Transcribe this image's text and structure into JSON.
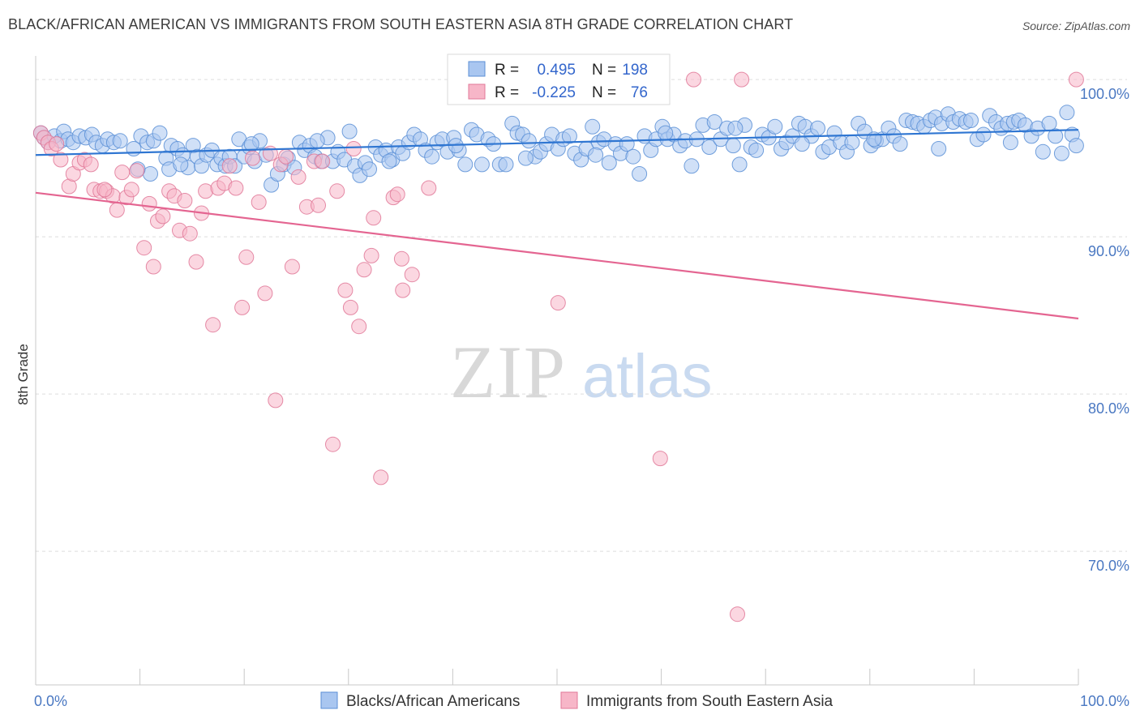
{
  "chart_data": {
    "type": "scatter",
    "title": "BLACK/AFRICAN AMERICAN VS IMMIGRANTS FROM SOUTH EASTERN ASIA 8TH GRADE CORRELATION CHART",
    "source": "Source: ZipAtlas.com",
    "watermark": "ZIPatlas",
    "ylabel": "8th Grade",
    "xlim": [
      0,
      100
    ],
    "ylim": [
      61.5,
      101.5
    ],
    "x_tick_labels": {
      "left": "0.0%",
      "right": "100.0%"
    },
    "y_ticks": [
      {
        "value": 100,
        "label": "100.0%"
      },
      {
        "value": 90,
        "label": "90.0%"
      },
      {
        "value": 80,
        "label": "80.0%"
      },
      {
        "value": 70,
        "label": "70.0%"
      }
    ],
    "grid": true,
    "legend_position": "bottom-center",
    "stats_box": {
      "position": "top-center",
      "rows": [
        {
          "r_label": "R =",
          "r_value": "0.495",
          "n_label": "N =",
          "n_value": "198"
        },
        {
          "r_label": "R =",
          "r_value": "-0.225",
          "n_label": "N =",
          "n_value": "76"
        }
      ]
    },
    "series": [
      {
        "name": "Blacks/African Americans",
        "fill": "#a9c6f0",
        "stroke": "#5b8fd6",
        "line_color": "#2f76d2",
        "trend": {
          "x": [
            0,
            100
          ],
          "y": [
            95.2,
            96.8
          ]
        },
        "points": [
          [
            0.5,
            96.6
          ],
          [
            0.8,
            96.3
          ],
          [
            1.2,
            96.0
          ],
          [
            1.8,
            96.4
          ],
          [
            2.4,
            96.1
          ],
          [
            2.7,
            96.7
          ],
          [
            3.1,
            96.2
          ],
          [
            3.6,
            96.0
          ],
          [
            4.2,
            96.4
          ],
          [
            4.8,
            96.3
          ],
          [
            5.4,
            96.5
          ],
          [
            5.8,
            96.0
          ],
          [
            6.4,
            95.8
          ],
          [
            6.9,
            96.2
          ],
          [
            7.5,
            96.0
          ],
          [
            8.1,
            96.1
          ],
          [
            9.4,
            95.6
          ],
          [
            10.1,
            96.4
          ],
          [
            10.7,
            96.0
          ],
          [
            11.3,
            96.1
          ],
          [
            11.9,
            96.6
          ],
          [
            12.5,
            95.0
          ],
          [
            12.8,
            94.3
          ],
          [
            13.0,
            95.8
          ],
          [
            13.6,
            95.6
          ],
          [
            14.1,
            95.2
          ],
          [
            14.6,
            94.4
          ],
          [
            15.1,
            95.8
          ],
          [
            15.5,
            95.1
          ],
          [
            15.9,
            94.5
          ],
          [
            16.4,
            95.2
          ],
          [
            16.9,
            95.5
          ],
          [
            17.4,
            94.6
          ],
          [
            17.8,
            95.0
          ],
          [
            18.2,
            94.5
          ],
          [
            18.6,
            95.1
          ],
          [
            19.1,
            94.5
          ],
          [
            19.5,
            96.2
          ],
          [
            20.0,
            95.1
          ],
          [
            20.5,
            95.7
          ],
          [
            21.0,
            94.8
          ],
          [
            21.5,
            96.1
          ],
          [
            22.1,
            95.2
          ],
          [
            22.6,
            93.3
          ],
          [
            23.2,
            94.0
          ],
          [
            23.8,
            94.6
          ],
          [
            24.2,
            95.0
          ],
          [
            24.8,
            94.4
          ],
          [
            25.3,
            96.0
          ],
          [
            25.8,
            95.5
          ],
          [
            26.3,
            95.8
          ],
          [
            26.8,
            95.1
          ],
          [
            27.4,
            94.8
          ],
          [
            28.0,
            96.3
          ],
          [
            28.5,
            94.8
          ],
          [
            29.0,
            95.4
          ],
          [
            29.6,
            94.9
          ],
          [
            30.1,
            96.7
          ],
          [
            30.6,
            94.5
          ],
          [
            31.1,
            93.9
          ],
          [
            31.6,
            94.7
          ],
          [
            32.0,
            94.3
          ],
          [
            32.6,
            95.7
          ],
          [
            33.1,
            95.2
          ],
          [
            33.6,
            95.5
          ],
          [
            34.2,
            94.9
          ],
          [
            34.8,
            95.7
          ],
          [
            35.2,
            95.3
          ],
          [
            35.8,
            96.0
          ],
          [
            36.3,
            96.5
          ],
          [
            36.9,
            96.2
          ],
          [
            37.4,
            95.5
          ],
          [
            38.0,
            95.1
          ],
          [
            38.5,
            96.0
          ],
          [
            39.0,
            96.2
          ],
          [
            39.5,
            95.4
          ],
          [
            40.1,
            96.3
          ],
          [
            40.6,
            95.5
          ],
          [
            41.2,
            94.6
          ],
          [
            41.8,
            96.8
          ],
          [
            42.3,
            96.5
          ],
          [
            42.8,
            94.6
          ],
          [
            43.4,
            96.2
          ],
          [
            43.9,
            95.9
          ],
          [
            44.5,
            94.6
          ],
          [
            45.1,
            94.6
          ],
          [
            45.7,
            97.2
          ],
          [
            46.2,
            96.6
          ],
          [
            46.7,
            96.5
          ],
          [
            47.3,
            96.1
          ],
          [
            47.9,
            95.1
          ],
          [
            48.4,
            95.4
          ],
          [
            49.0,
            95.9
          ],
          [
            49.5,
            96.5
          ],
          [
            50.1,
            95.6
          ],
          [
            50.6,
            96.2
          ],
          [
            51.2,
            96.4
          ],
          [
            51.7,
            95.3
          ],
          [
            52.3,
            94.9
          ],
          [
            52.8,
            95.6
          ],
          [
            53.4,
            97.0
          ],
          [
            54.0,
            96.0
          ],
          [
            54.5,
            96.2
          ],
          [
            55.0,
            94.7
          ],
          [
            55.6,
            95.9
          ],
          [
            56.1,
            95.3
          ],
          [
            56.7,
            95.9
          ],
          [
            57.3,
            95.1
          ],
          [
            57.9,
            94.0
          ],
          [
            58.4,
            96.4
          ],
          [
            59.0,
            95.5
          ],
          [
            59.5,
            96.2
          ],
          [
            60.1,
            97.0
          ],
          [
            60.6,
            96.2
          ],
          [
            61.2,
            96.5
          ],
          [
            61.8,
            95.8
          ],
          [
            62.3,
            96.1
          ],
          [
            62.9,
            94.5
          ],
          [
            63.4,
            96.2
          ],
          [
            64.0,
            97.1
          ],
          [
            64.6,
            95.7
          ],
          [
            65.1,
            97.3
          ],
          [
            65.7,
            96.2
          ],
          [
            66.3,
            96.9
          ],
          [
            66.9,
            95.8
          ],
          [
            67.5,
            94.6
          ],
          [
            68.0,
            97.1
          ],
          [
            68.6,
            95.7
          ],
          [
            69.1,
            95.5
          ],
          [
            69.7,
            96.5
          ],
          [
            70.3,
            96.3
          ],
          [
            70.9,
            97.0
          ],
          [
            71.5,
            95.6
          ],
          [
            72.0,
            96.0
          ],
          [
            72.6,
            96.4
          ],
          [
            73.2,
            97.2
          ],
          [
            73.8,
            97.0
          ],
          [
            74.4,
            96.4
          ],
          [
            75.0,
            96.9
          ],
          [
            75.5,
            95.4
          ],
          [
            76.1,
            95.7
          ],
          [
            76.6,
            96.6
          ],
          [
            77.2,
            96.0
          ],
          [
            77.8,
            95.4
          ],
          [
            78.3,
            96.0
          ],
          [
            78.9,
            97.2
          ],
          [
            79.5,
            96.7
          ],
          [
            80.1,
            95.8
          ],
          [
            80.6,
            96.1
          ],
          [
            81.2,
            96.2
          ],
          [
            81.8,
            96.9
          ],
          [
            82.3,
            96.4
          ],
          [
            82.9,
            95.9
          ],
          [
            83.5,
            97.4
          ],
          [
            84.1,
            97.3
          ],
          [
            84.6,
            97.2
          ],
          [
            85.2,
            97.0
          ],
          [
            85.8,
            97.4
          ],
          [
            86.3,
            97.6
          ],
          [
            86.9,
            97.2
          ],
          [
            87.5,
            97.8
          ],
          [
            88.0,
            97.3
          ],
          [
            88.6,
            97.5
          ],
          [
            89.2,
            97.3
          ],
          [
            89.7,
            97.4
          ],
          [
            90.3,
            96.2
          ],
          [
            90.9,
            96.5
          ],
          [
            91.5,
            97.7
          ],
          [
            92.1,
            97.3
          ],
          [
            92.6,
            96.9
          ],
          [
            93.2,
            97.2
          ],
          [
            93.8,
            97.3
          ],
          [
            94.3,
            97.4
          ],
          [
            94.9,
            97.1
          ],
          [
            95.5,
            96.4
          ],
          [
            96.1,
            96.9
          ],
          [
            96.6,
            95.4
          ],
          [
            97.2,
            97.2
          ],
          [
            97.8,
            96.4
          ],
          [
            98.4,
            95.3
          ],
          [
            98.9,
            97.9
          ],
          [
            99.4,
            96.5
          ],
          [
            99.8,
            95.8
          ],
          [
            11.0,
            94.0
          ],
          [
            13.9,
            94.6
          ],
          [
            20.7,
            95.9
          ],
          [
            27.0,
            96.1
          ],
          [
            33.9,
            94.8
          ],
          [
            40.3,
            95.8
          ],
          [
            47.0,
            95.0
          ],
          [
            53.7,
            95.2
          ],
          [
            60.4,
            96.6
          ],
          [
            67.1,
            96.9
          ],
          [
            73.5,
            95.9
          ],
          [
            80.4,
            96.2
          ],
          [
            86.6,
            95.6
          ],
          [
            93.5,
            96.0
          ],
          [
            9.8,
            94.3
          ]
        ]
      },
      {
        "name": "Immigrants from South Eastern Asia",
        "fill": "#f7b6c8",
        "stroke": "#e07898",
        "line_color": "#e46591",
        "trend": {
          "x": [
            0,
            100
          ],
          "y": [
            92.8,
            84.8
          ]
        },
        "points": [
          [
            0.5,
            96.6
          ],
          [
            0.8,
            96.3
          ],
          [
            1.2,
            96.0
          ],
          [
            1.5,
            95.6
          ],
          [
            2.0,
            95.9
          ],
          [
            2.4,
            94.9
          ],
          [
            3.2,
            93.2
          ],
          [
            3.6,
            94.0
          ],
          [
            4.2,
            94.7
          ],
          [
            4.7,
            94.9
          ],
          [
            5.3,
            94.6
          ],
          [
            5.6,
            93.0
          ],
          [
            6.2,
            92.9
          ],
          [
            6.8,
            92.9
          ],
          [
            7.4,
            92.6
          ],
          [
            7.8,
            91.7
          ],
          [
            8.3,
            94.1
          ],
          [
            8.7,
            92.5
          ],
          [
            9.2,
            93.0
          ],
          [
            9.7,
            94.2
          ],
          [
            10.4,
            89.3
          ],
          [
            10.9,
            92.1
          ],
          [
            11.3,
            88.1
          ],
          [
            11.7,
            91.0
          ],
          [
            12.2,
            91.3
          ],
          [
            12.8,
            92.9
          ],
          [
            13.3,
            92.6
          ],
          [
            13.8,
            90.4
          ],
          [
            14.3,
            92.3
          ],
          [
            14.8,
            90.2
          ],
          [
            15.4,
            88.4
          ],
          [
            15.9,
            91.5
          ],
          [
            16.3,
            92.9
          ],
          [
            17.0,
            84.4
          ],
          [
            17.5,
            93.1
          ],
          [
            18.1,
            93.4
          ],
          [
            18.6,
            94.5
          ],
          [
            19.2,
            93.1
          ],
          [
            19.8,
            85.5
          ],
          [
            20.2,
            88.7
          ],
          [
            20.8,
            95.0
          ],
          [
            21.4,
            92.2
          ],
          [
            22.0,
            86.4
          ],
          [
            22.5,
            95.3
          ],
          [
            23.0,
            79.6
          ],
          [
            23.5,
            94.6
          ],
          [
            24.0,
            95.1
          ],
          [
            24.6,
            88.1
          ],
          [
            25.2,
            93.8
          ],
          [
            26.0,
            91.9
          ],
          [
            27.1,
            92.0
          ],
          [
            28.5,
            76.8
          ],
          [
            28.9,
            92.9
          ],
          [
            29.7,
            86.6
          ],
          [
            30.2,
            85.5
          ],
          [
            30.5,
            95.6
          ],
          [
            31.0,
            84.3
          ],
          [
            31.5,
            87.9
          ],
          [
            32.4,
            91.2
          ],
          [
            32.2,
            88.8
          ],
          [
            33.1,
            74.7
          ],
          [
            34.3,
            92.5
          ],
          [
            34.7,
            92.7
          ],
          [
            35.1,
            88.6
          ],
          [
            36.1,
            87.6
          ],
          [
            37.7,
            93.1
          ],
          [
            50.1,
            85.8
          ],
          [
            59.9,
            75.9
          ],
          [
            63.1,
            100.0
          ],
          [
            67.3,
            66.0
          ],
          [
            67.7,
            100.0
          ],
          [
            99.8,
            100.0
          ],
          [
            26.7,
            94.8
          ],
          [
            27.5,
            94.8
          ],
          [
            6.6,
            93.0
          ],
          [
            35.2,
            86.6
          ]
        ]
      }
    ]
  }
}
